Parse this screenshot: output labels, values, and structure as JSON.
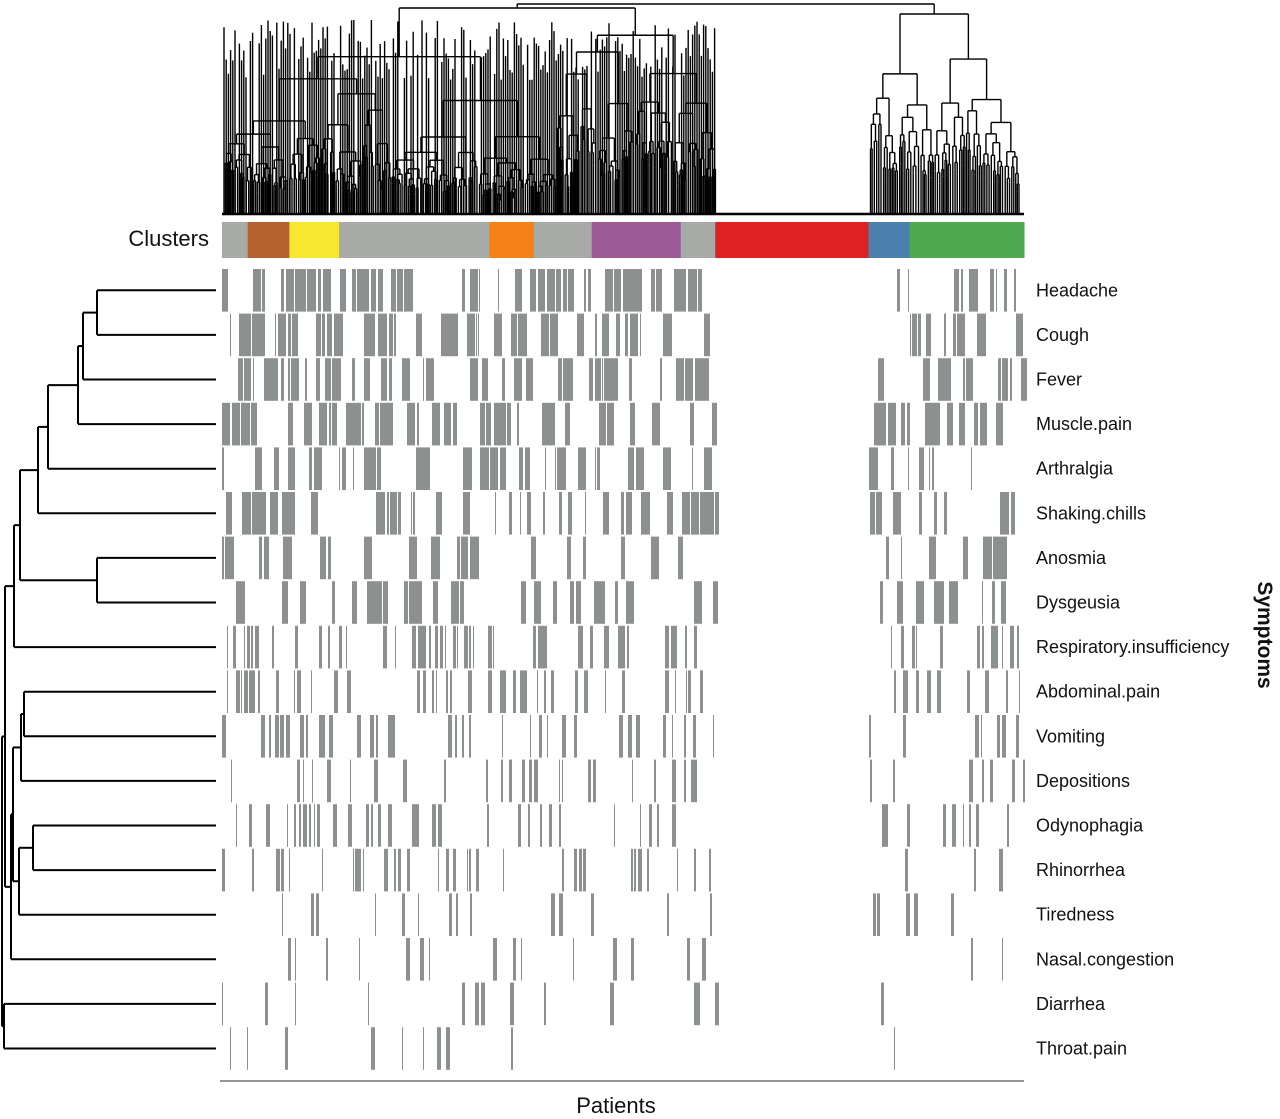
{
  "chart_data": {
    "type": "heatmap",
    "xlabel": "Patients",
    "ylabel": "Symptoms",
    "cluster_bar_label": "Clusters",
    "cell_color_present": "#8c908f",
    "cell_color_absent": "#ffffff",
    "row_dendrogram": true,
    "column_dendrogram": true,
    "rows": [
      "Headache",
      "Cough",
      "Fever",
      "Muscle.pain",
      "Arthralgia",
      "Shaking.chills",
      "Anosmia",
      "Dysgeusia",
      "Respiratory.insufficiency",
      "Abdominal.pain",
      "Vomiting",
      "Depositions",
      "Odynophagia",
      "Rhinorrhea",
      "Tiredness",
      "Nasal.congestion",
      "Diarrhea",
      "Throat.pain"
    ],
    "clusters": [
      {
        "color": "#a8aaa8",
        "fraction": 0.032
      },
      {
        "color": "#b5622f",
        "fraction": 0.052
      },
      {
        "color": "#f8e731",
        "fraction": 0.062
      },
      {
        "color": "#a8aaa8",
        "fraction": 0.187
      },
      {
        "color": "#f58219",
        "fraction": 0.056
      },
      {
        "color": "#a8aaa8",
        "fraction": 0.072
      },
      {
        "color": "#9c5a98",
        "fraction": 0.111
      },
      {
        "color": "#a8aaa8",
        "fraction": 0.043
      },
      {
        "color": "#e02121",
        "fraction": 0.191
      },
      {
        "color": "#4b7fac",
        "fraction": 0.051
      },
      {
        "color": "#4fa950",
        "fraction": 0.143
      }
    ]
  }
}
